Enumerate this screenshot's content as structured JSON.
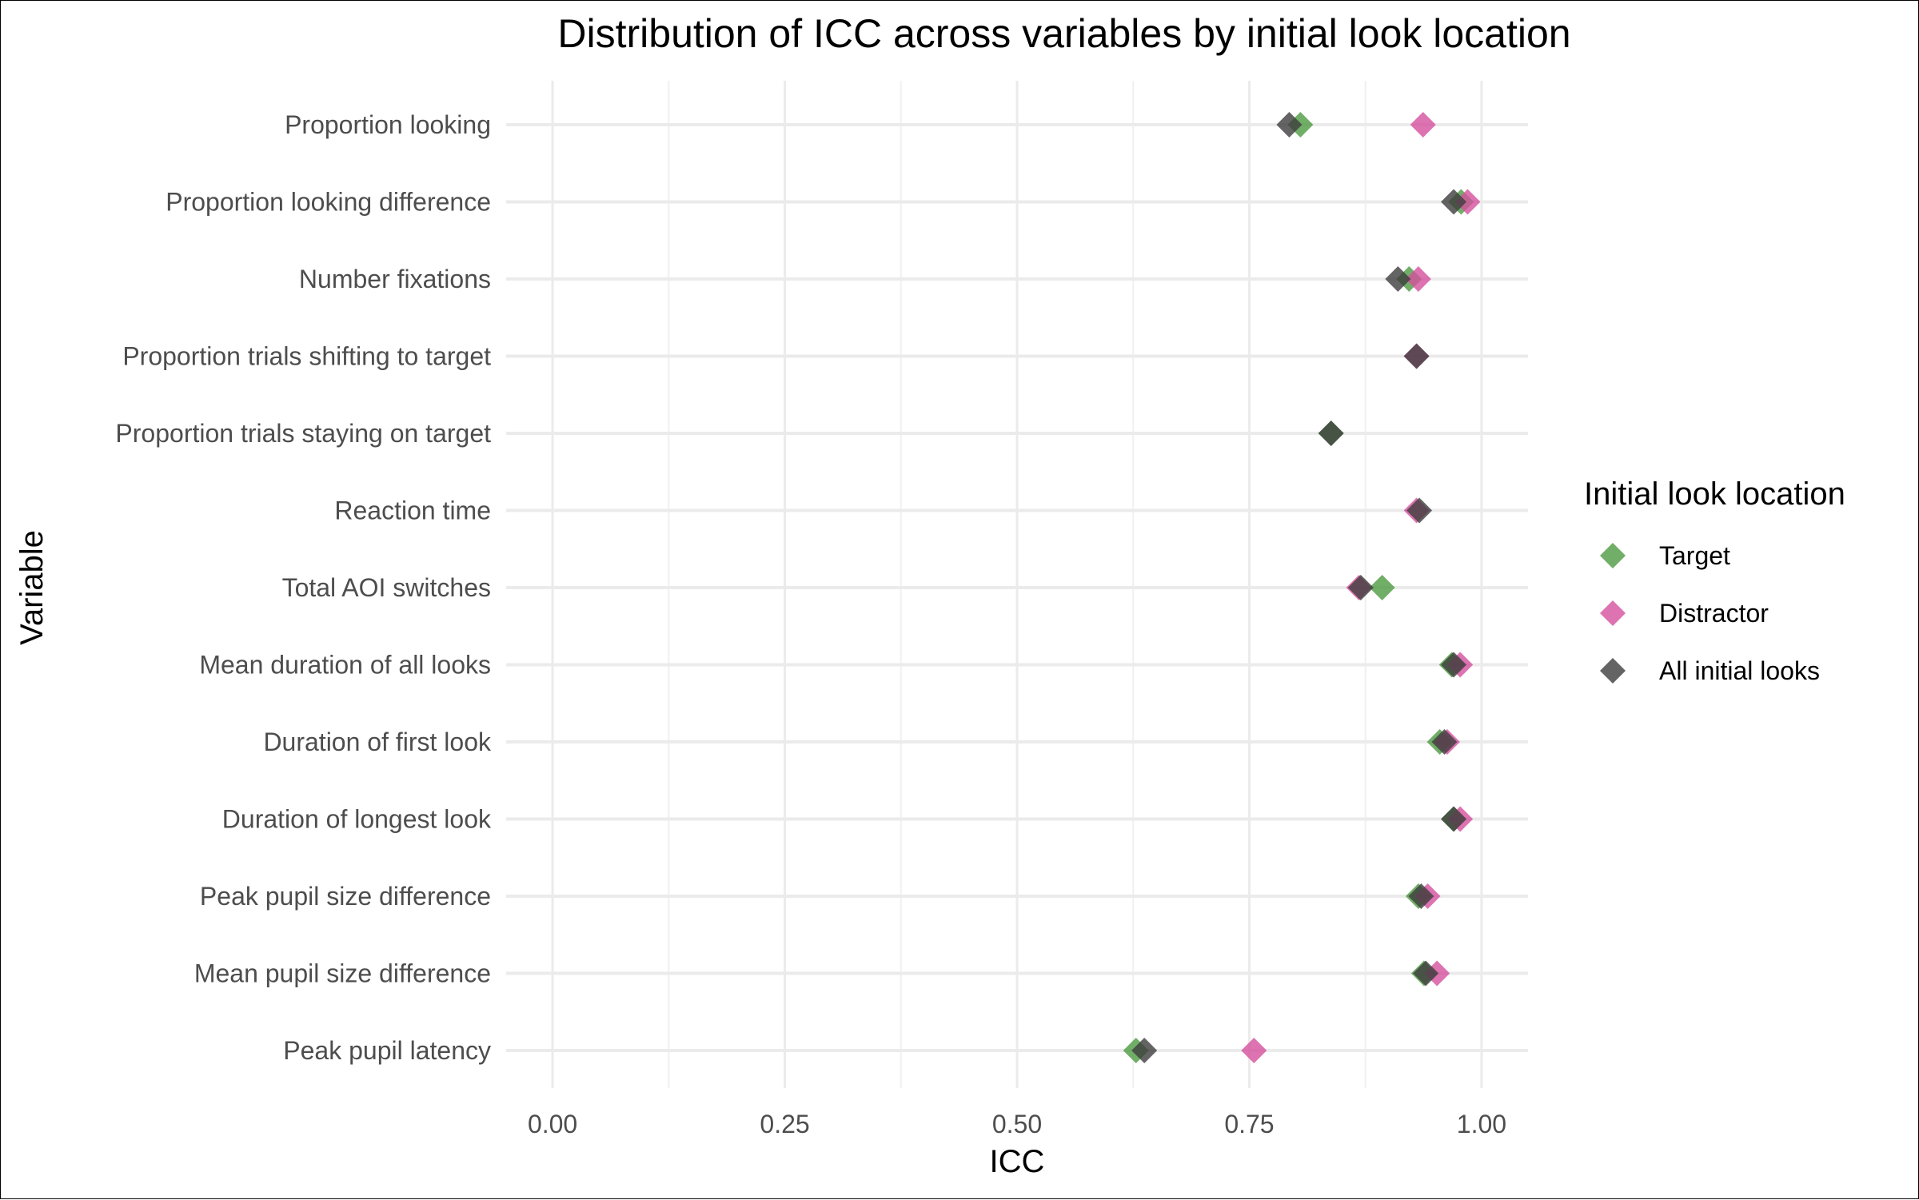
{
  "chart_data": {
    "type": "scatter",
    "title": "Distribution of ICC across variables by initial look location",
    "xlabel": "ICC",
    "ylabel": "Variable",
    "xlim": [
      -0.05,
      1.05
    ],
    "x_ticks": [
      "0.00",
      "0.25",
      "0.50",
      "0.75",
      "1.00"
    ],
    "x_tick_values": [
      0,
      0.25,
      0.5,
      0.75,
      1.0
    ],
    "grid": true,
    "legend_position": "right",
    "legend_title": "Initial look location",
    "categories": [
      "Proportion looking",
      "Proportion looking difference",
      "Number fixations",
      "Proportion trials shifting to target",
      "Proportion trials staying on target",
      "Reaction time",
      "Total AOI switches",
      "Mean duration of all looks",
      "Duration of first look",
      "Duration of longest look",
      "Peak pupil size difference",
      "Mean pupil size difference",
      "Peak pupil latency"
    ],
    "series": [
      {
        "name": "Target",
        "color": "#4d9a41",
        "values": [
          0.805,
          0.978,
          0.922,
          null,
          0.838,
          null,
          0.893,
          0.968,
          0.955,
          0.97,
          0.932,
          0.938,
          0.628
        ]
      },
      {
        "name": "Distractor",
        "color": "#d4509e",
        "values": [
          0.937,
          0.985,
          0.932,
          0.93,
          null,
          0.93,
          0.868,
          0.977,
          0.963,
          0.977,
          0.942,
          0.952,
          0.755
        ]
      },
      {
        "name": "All initial looks",
        "color": "#3d3d3d",
        "values": [
          0.793,
          0.97,
          0.91,
          0.93,
          0.838,
          0.933,
          0.87,
          0.97,
          0.96,
          0.97,
          0.935,
          0.94,
          0.637
        ]
      }
    ]
  }
}
